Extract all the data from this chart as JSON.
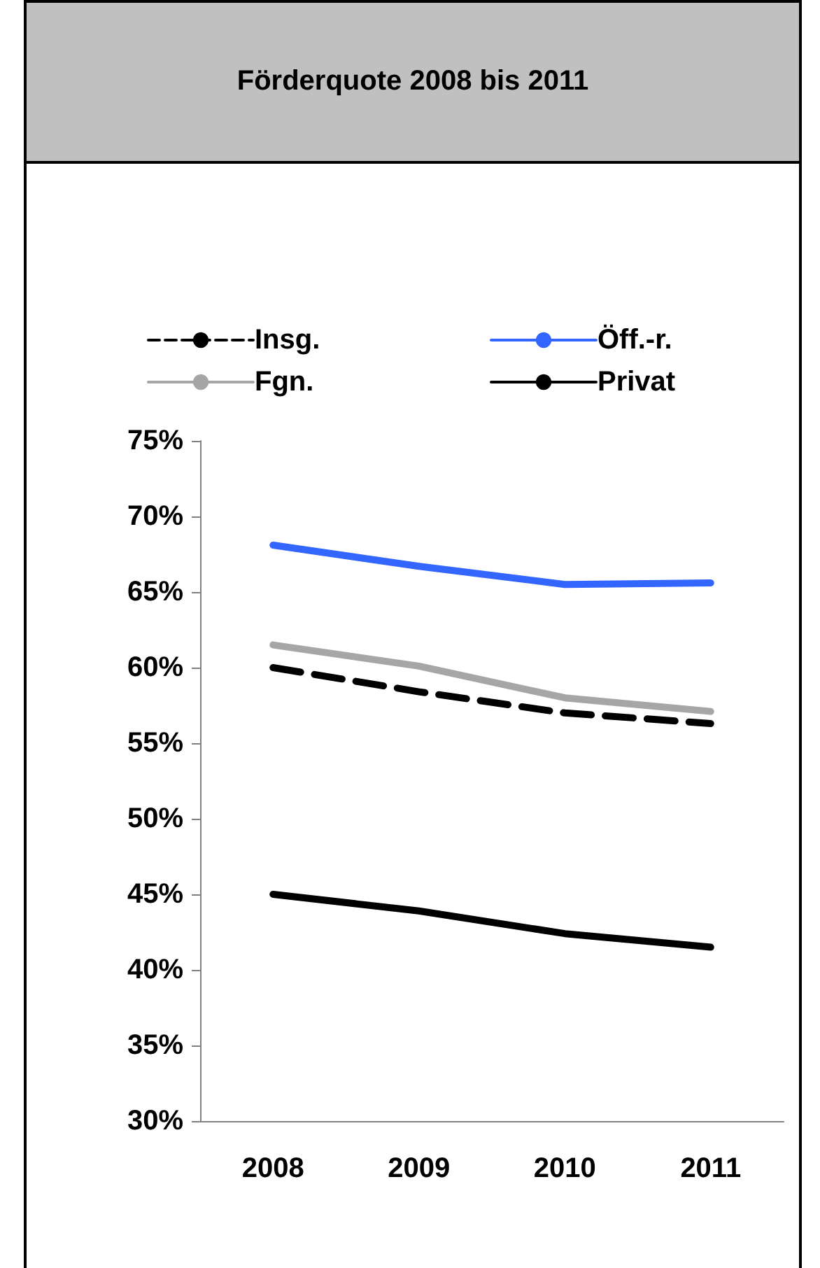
{
  "chart_data": {
    "type": "line",
    "title": "Förderquote 2008 bis 2011",
    "categories": [
      "2008",
      "2009",
      "2010",
      "2011"
    ],
    "series": [
      {
        "name": "Insg.",
        "color": "#000000",
        "line_style": "dashed",
        "values": [
          60.0,
          58.4,
          57.0,
          56.3
        ]
      },
      {
        "name": "Öff.-r.",
        "color": "#3366ff",
        "values": [
          68.1,
          66.7,
          65.5,
          65.6
        ]
      },
      {
        "name": "Fgn.",
        "color": "#a6a6a6",
        "values": [
          61.5,
          60.1,
          58.0,
          57.1
        ]
      },
      {
        "name": "Privat",
        "color": "#000000",
        "values": [
          45.0,
          43.9,
          42.4,
          41.5
        ]
      }
    ],
    "ylim": [
      30,
      75
    ],
    "yticks": [
      {
        "value": 30,
        "label": "30%"
      },
      {
        "value": 35,
        "label": "35%"
      },
      {
        "value": 40,
        "label": "40%"
      },
      {
        "value": 45,
        "label": "45%"
      },
      {
        "value": 50,
        "label": "50%"
      },
      {
        "value": 55,
        "label": "55%"
      },
      {
        "value": 60,
        "label": "60%"
      },
      {
        "value": 65,
        "label": "65%"
      },
      {
        "value": 70,
        "label": "70%"
      },
      {
        "value": 75,
        "label": "75%"
      }
    ],
    "grid": false,
    "legend": "top",
    "marker": "none",
    "line_style": "solid"
  }
}
